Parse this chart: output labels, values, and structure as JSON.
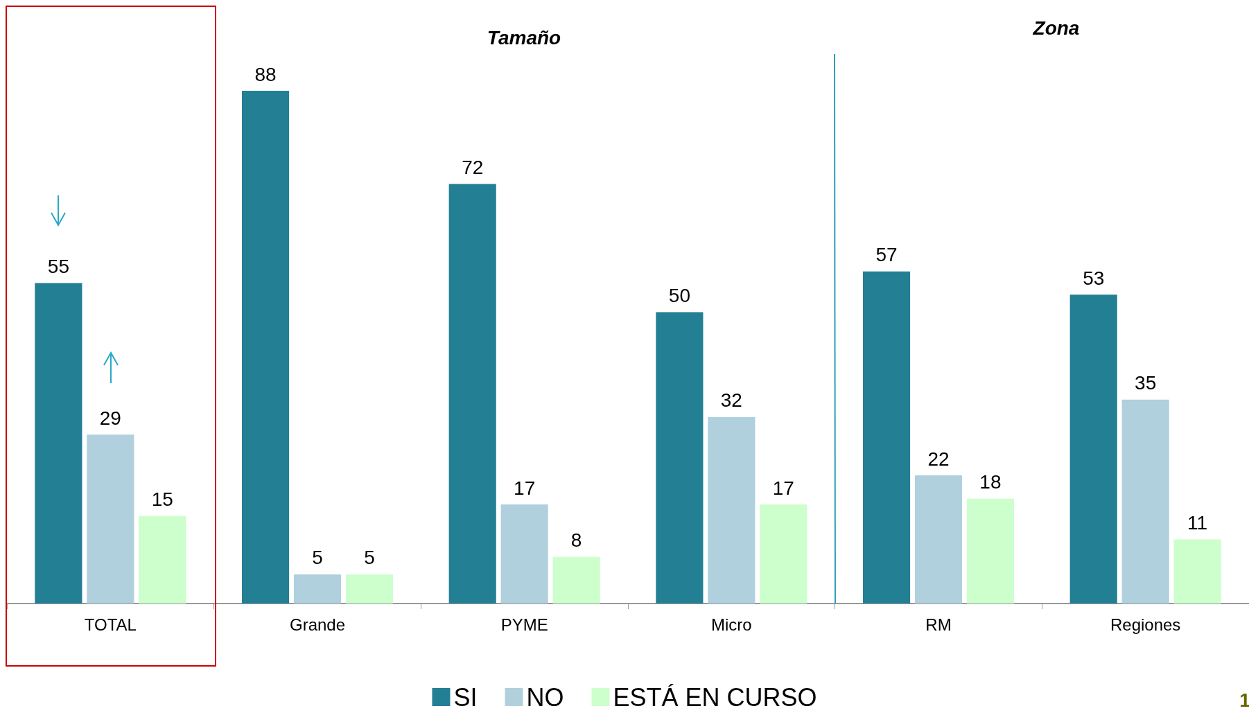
{
  "chart_data": {
    "type": "bar",
    "categories": [
      "TOTAL",
      "Grande",
      "PYME",
      "Micro",
      "RM",
      "Regiones"
    ],
    "series": [
      {
        "name": "SI",
        "color": "#237f94",
        "values": [
          55,
          88,
          72,
          50,
          57,
          53
        ]
      },
      {
        "name": "NO",
        "color": "#b0d0dd",
        "values": [
          29,
          5,
          17,
          32,
          22,
          35
        ]
      },
      {
        "name": "ESTÁ EN CURSO",
        "color": "#ccffcc",
        "values": [
          15,
          5,
          8,
          17,
          18,
          11
        ]
      }
    ],
    "data_labels": true,
    "legend": "bottom",
    "annotations": [
      "Tamaño",
      "Zona",
      "1"
    ]
  }
}
